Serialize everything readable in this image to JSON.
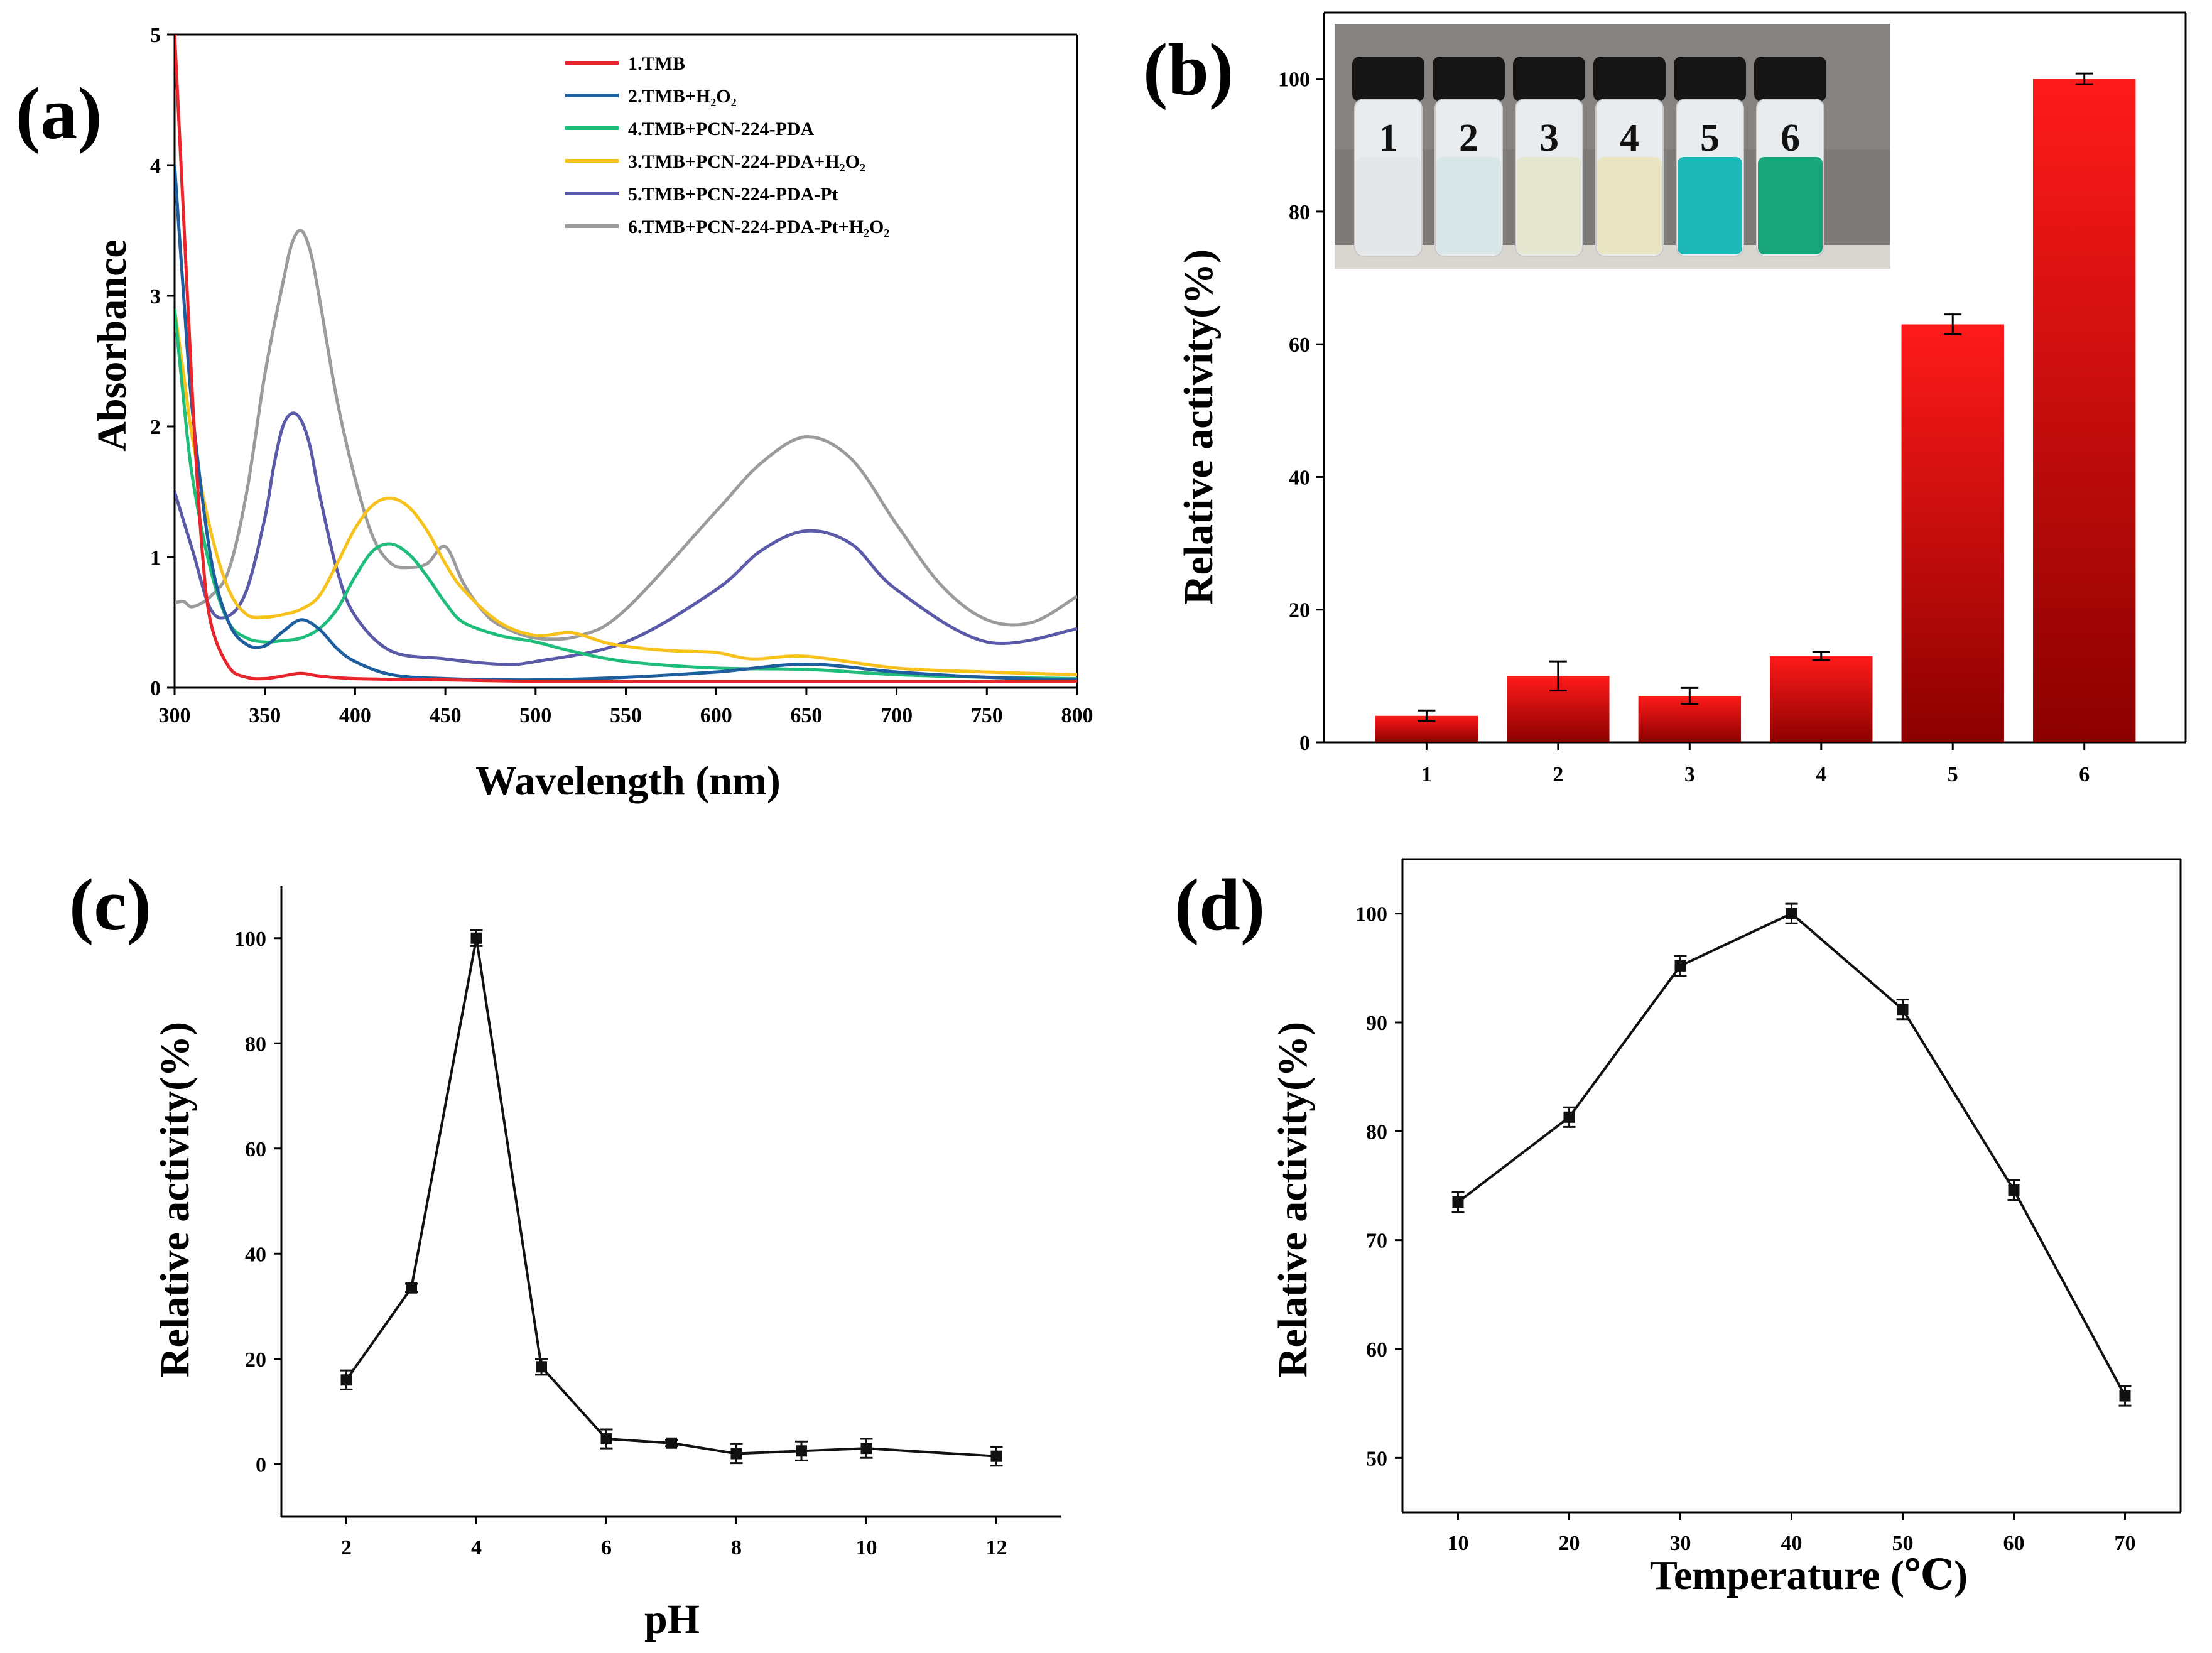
{
  "chart_data": [
    {
      "panel": "(a)",
      "type": "line",
      "xlabel": "Wavelength (nm)",
      "ylabel": "Absorbance",
      "xlim": [
        300,
        800
      ],
      "ylim": [
        0,
        5
      ],
      "xticks": [
        300,
        350,
        400,
        450,
        500,
        550,
        600,
        650,
        700,
        750,
        800
      ],
      "yticks": [
        0,
        1,
        2,
        3,
        4,
        5
      ],
      "legend_position": "top-right",
      "series": [
        {
          "name": "1.TMB",
          "color": "#e8252b",
          "x": [
            300,
            305,
            310,
            315,
            320,
            330,
            340,
            350,
            360,
            370,
            380,
            400,
            450,
            500,
            600,
            700,
            800
          ],
          "y": [
            5.0,
            3.6,
            2.2,
            1.1,
            0.5,
            0.16,
            0.08,
            0.07,
            0.09,
            0.11,
            0.09,
            0.07,
            0.06,
            0.05,
            0.05,
            0.05,
            0.05
          ]
        },
        {
          "name": "2.TMB+H₂O₂",
          "color": "#1f5e9e",
          "x": [
            300,
            305,
            310,
            320,
            330,
            340,
            350,
            360,
            370,
            380,
            390,
            400,
            420,
            450,
            500,
            550,
            600,
            650,
            700,
            750,
            800
          ],
          "y": [
            4.0,
            3.0,
            2.1,
            1.0,
            0.5,
            0.33,
            0.32,
            0.43,
            0.52,
            0.45,
            0.3,
            0.2,
            0.1,
            0.07,
            0.06,
            0.08,
            0.12,
            0.18,
            0.12,
            0.08,
            0.06
          ]
        },
        {
          "name": "4.TMB+PCN-224-PDA",
          "color": "#1ebe7a",
          "x": [
            300,
            305,
            310,
            320,
            330,
            340,
            350,
            360,
            370,
            380,
            390,
            400,
            410,
            420,
            430,
            440,
            450,
            460,
            480,
            500,
            520,
            550,
            600,
            650,
            700,
            750,
            800
          ],
          "y": [
            2.9,
            2.2,
            1.6,
            0.9,
            0.5,
            0.38,
            0.35,
            0.36,
            0.38,
            0.45,
            0.6,
            0.85,
            1.05,
            1.1,
            1.02,
            0.85,
            0.65,
            0.5,
            0.4,
            0.35,
            0.28,
            0.2,
            0.15,
            0.14,
            0.1,
            0.08,
            0.07
          ]
        },
        {
          "name": "3.TMB+PCN-224-PDA+H₂O₂",
          "color": "#f7c21b",
          "x": [
            300,
            305,
            310,
            320,
            330,
            340,
            350,
            360,
            370,
            380,
            390,
            400,
            410,
            420,
            430,
            440,
            450,
            460,
            480,
            500,
            520,
            540,
            560,
            580,
            600,
            620,
            650,
            700,
            750,
            800
          ],
          "y": [
            2.9,
            2.4,
            1.9,
            1.2,
            0.75,
            0.56,
            0.54,
            0.56,
            0.6,
            0.7,
            0.95,
            1.22,
            1.4,
            1.45,
            1.38,
            1.2,
            0.95,
            0.75,
            0.5,
            0.4,
            0.42,
            0.34,
            0.3,
            0.28,
            0.27,
            0.22,
            0.24,
            0.15,
            0.12,
            0.1
          ]
        },
        {
          "name": "5.TMB+PCN-224-PDA-Pt",
          "color": "#5a5aa8",
          "x": [
            300,
            310,
            320,
            330,
            340,
            350,
            355,
            360,
            365,
            370,
            375,
            380,
            390,
            400,
            420,
            450,
            480,
            500,
            550,
            600,
            625,
            650,
            675,
            700,
            750,
            800
          ],
          "y": [
            1.5,
            1.05,
            0.6,
            0.55,
            0.75,
            1.3,
            1.7,
            2.0,
            2.1,
            2.05,
            1.85,
            1.5,
            0.9,
            0.55,
            0.28,
            0.22,
            0.18,
            0.2,
            0.35,
            0.75,
            1.05,
            1.2,
            1.1,
            0.75,
            0.35,
            0.45
          ]
        },
        {
          "name": "6.TMB+PCN-224-PDA-Pt+H₂O₂",
          "color": "#9b9b9b",
          "x": [
            300,
            305,
            310,
            320,
            330,
            340,
            350,
            360,
            365,
            370,
            375,
            380,
            390,
            400,
            410,
            420,
            430,
            440,
            450,
            460,
            470,
            480,
            500,
            525,
            550,
            600,
            625,
            650,
            675,
            700,
            725,
            750,
            775,
            800
          ],
          "y": [
            0.65,
            0.66,
            0.62,
            0.7,
            0.9,
            1.5,
            2.4,
            3.1,
            3.4,
            3.5,
            3.35,
            3.0,
            2.2,
            1.6,
            1.15,
            0.95,
            0.92,
            0.95,
            1.08,
            0.8,
            0.6,
            0.48,
            0.38,
            0.4,
            0.6,
            1.35,
            1.72,
            1.92,
            1.75,
            1.25,
            0.78,
            0.52,
            0.5,
            0.7
          ]
        }
      ]
    },
    {
      "panel": "(b)",
      "type": "bar",
      "ylabel": "Relative activity(%)",
      "categories": [
        "1",
        "2",
        "3",
        "4",
        "5",
        "6"
      ],
      "values": [
        4,
        10,
        7,
        13,
        63,
        100
      ],
      "errors": [
        0.8,
        2.2,
        1.2,
        0.6,
        1.5,
        0.8
      ],
      "ylim": [
        0,
        110
      ],
      "yticks": [
        0,
        20,
        40,
        60,
        80,
        100
      ],
      "inset": {
        "description": "photo of six vials",
        "labels": [
          "1",
          "2",
          "3",
          "4",
          "5",
          "6"
        ],
        "liquid_colors": [
          "#e4e6e8",
          "#d8e6e8",
          "#e4e6cf",
          "#e9e4c2",
          "#1fb8b8",
          "#19a57a"
        ]
      }
    },
    {
      "panel": "(c)",
      "type": "line",
      "xlabel": "pH",
      "ylabel": "Relative activity(%)",
      "x": [
        2,
        3,
        4,
        5,
        6,
        7,
        8,
        9,
        10,
        12
      ],
      "y": [
        16,
        33.5,
        100,
        18.5,
        4.8,
        4,
        2,
        2.5,
        3,
        1.5
      ],
      "errors": [
        1.8,
        0.8,
        1.5,
        1.5,
        1.8,
        0.6,
        1.8,
        1.8,
        1.8,
        1.8
      ],
      "xlim": [
        1,
        13
      ],
      "ylim": [
        -10,
        110
      ],
      "xticks": [
        2,
        4,
        6,
        8,
        10,
        12
      ],
      "yticks": [
        0,
        20,
        40,
        60,
        80,
        100
      ]
    },
    {
      "panel": "(d)",
      "type": "line",
      "xlabel": "Temperature (℃)",
      "ylabel": "Relative activity(%)",
      "x": [
        10,
        20,
        30,
        40,
        50,
        60,
        70
      ],
      "y": [
        73.5,
        81.3,
        95.2,
        100,
        91.2,
        74.6,
        55.7
      ],
      "errors": [
        0.9,
        0.9,
        0.9,
        0.9,
        0.9,
        0.9,
        0.9
      ],
      "xlim": [
        5,
        75
      ],
      "ylim": [
        45,
        105
      ],
      "xticks": [
        10,
        20,
        30,
        40,
        50,
        60,
        70
      ],
      "yticks": [
        50,
        60,
        70,
        80,
        90,
        100
      ]
    }
  ]
}
